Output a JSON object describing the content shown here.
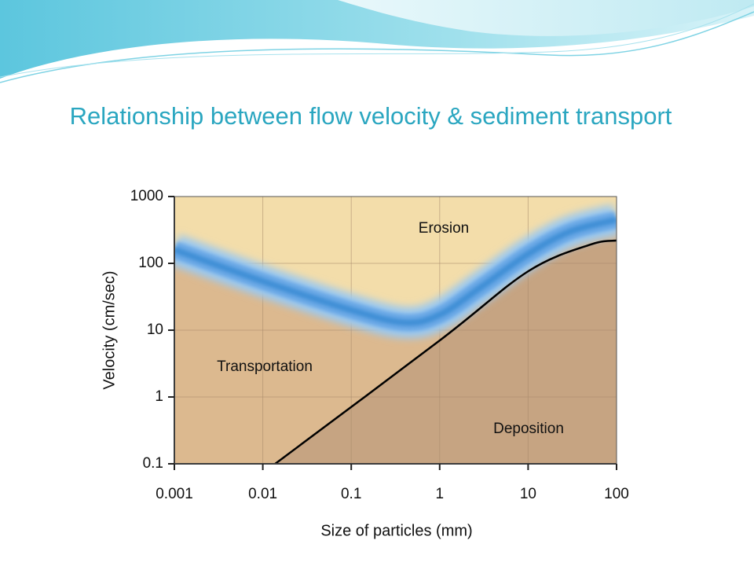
{
  "title": "Relationship between flow velocity & sediment transport",
  "chart_data": {
    "type": "line",
    "xlabel": "Size of particles (mm)",
    "ylabel": "Velocity (cm/sec)",
    "xscale": "log",
    "yscale": "log",
    "xlim": [
      0.001,
      100
    ],
    "ylim": [
      0.1,
      1000
    ],
    "xticks": [
      0.001,
      0.01,
      0.1,
      1,
      10,
      100
    ],
    "yticks": [
      0.1,
      1,
      10,
      100,
      1000
    ],
    "grid": true,
    "annotations": [
      "Erosion",
      "Transportation",
      "Deposition"
    ],
    "series": [
      {
        "x": [
          0.001,
          0.01,
          0.1,
          0.4,
          1,
          3,
          10,
          30,
          100
        ],
        "values": [
          160,
          54,
          20,
          13,
          17,
          45,
          138,
          300,
          450
        ],
        "color": "#3f8fd6"
      },
      {
        "x": [
          0.0138,
          1,
          10,
          50,
          100
        ],
        "values": [
          0.1,
          7,
          76,
          190,
          220
        ],
        "color": "#000000"
      }
    ]
  }
}
